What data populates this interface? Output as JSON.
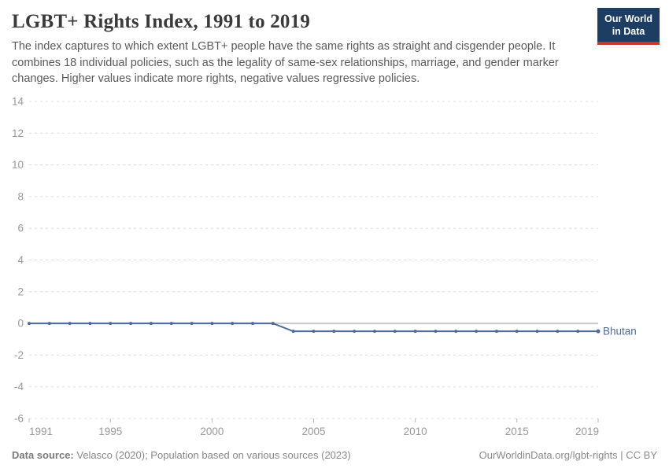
{
  "header": {
    "title": "LGBT+ Rights Index, 1991 to 2019",
    "subtitle": "The index captures to which extent LGBT+ people have the same rights as straight and cisgender people. It combines 18 individual policies, such as the legality of same-sex relationships, marriage, and gender marker changes. Higher values indicate more rights, negative values regressive policies.",
    "logo": {
      "line1": "Our World",
      "line2": "in Data",
      "bg_color": "#1d3d63",
      "bar_color": "#c9372c"
    }
  },
  "footer": {
    "source_label": "Data source:",
    "source_text": " Velasco (2020); Population based on various sources (2023)",
    "link_text": "OurWorldinData.org/lgbt-rights | CC BY"
  },
  "chart_data": {
    "type": "line",
    "title": "LGBT+ Rights Index, 1991 to 2019",
    "xlabel": "",
    "ylabel": "",
    "x": [
      1991,
      1992,
      1993,
      1994,
      1995,
      1996,
      1997,
      1998,
      1999,
      2000,
      2001,
      2002,
      2003,
      2004,
      2005,
      2006,
      2007,
      2008,
      2009,
      2010,
      2011,
      2012,
      2013,
      2014,
      2015,
      2016,
      2017,
      2018,
      2019
    ],
    "series": [
      {
        "name": "Bhutan",
        "color": "#4C6A9C",
        "values": [
          0,
          0,
          0,
          0,
          0,
          0,
          0,
          0,
          0,
          0,
          0,
          0,
          0,
          -0.5,
          -0.5,
          -0.5,
          -0.5,
          -0.5,
          -0.5,
          -0.5,
          -0.5,
          -0.5,
          -0.5,
          -0.5,
          -0.5,
          -0.5,
          -0.5,
          -0.5,
          -0.5
        ]
      }
    ],
    "ylim": [
      -6,
      14
    ],
    "yticks": [
      14,
      12,
      10,
      8,
      6,
      4,
      2,
      0,
      -2,
      -4,
      -6
    ],
    "xticks": [
      1991,
      1995,
      2000,
      2005,
      2010,
      2015,
      2019
    ],
    "grid": "horizontal-dashed",
    "zero_line": true,
    "legend": "end-of-line-label",
    "colors": {
      "grid": "#dddddd",
      "zero_line": "#c8c8c8",
      "axis_text": "#999999"
    }
  }
}
